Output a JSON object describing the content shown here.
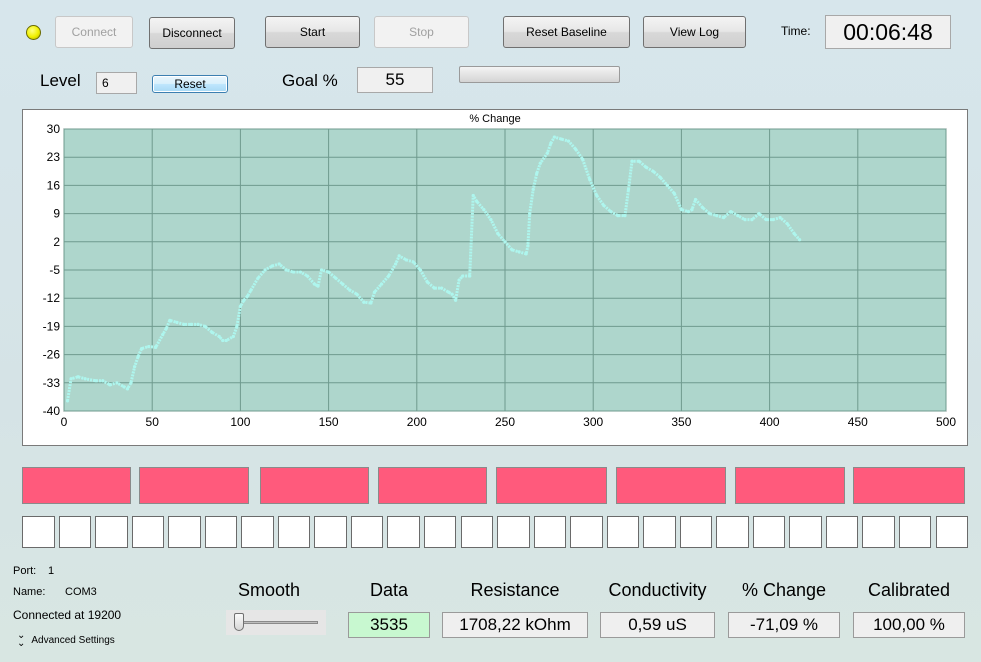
{
  "toolbar": {
    "connect_label": "Connect",
    "disconnect_label": "Disconnect",
    "start_label": "Start",
    "stop_label": "Stop",
    "reset_baseline_label": "Reset Baseline",
    "view_log_label": "View Log",
    "time_label": "Time:",
    "time_value": "00:06:48",
    "status_led_color": "#f0f000"
  },
  "level": {
    "label": "Level",
    "value": "6",
    "reset_label": "Reset"
  },
  "goal": {
    "label": "Goal %",
    "value": "55"
  },
  "chart_data": {
    "type": "line",
    "title": "% Change",
    "xlim": [
      0,
      500
    ],
    "ylim": [
      -40,
      30
    ],
    "x_ticks": [
      0,
      50,
      100,
      150,
      200,
      250,
      300,
      350,
      400,
      450,
      500
    ],
    "y_ticks": [
      30,
      23,
      16,
      9,
      2,
      -5,
      -12,
      -19,
      -26,
      -33,
      -40
    ],
    "grid": true,
    "colors": {
      "plot_bg": "#aed6cc",
      "line": "#aef6ee",
      "grid": "#6f9a8e"
    },
    "series": [
      {
        "x": [
          2,
          4,
          8,
          12,
          18,
          22,
          26,
          30,
          34,
          36,
          38,
          40,
          42,
          44,
          48,
          52,
          56,
          58,
          60,
          64,
          68,
          72,
          76,
          80,
          84,
          88,
          90,
          92,
          96,
          98,
          100,
          102,
          104,
          106,
          110,
          114,
          118,
          122,
          126,
          130,
          134,
          138,
          142,
          144,
          146,
          150,
          154,
          158,
          162,
          166,
          170,
          174,
          176,
          180,
          184,
          188,
          190,
          194,
          198,
          202,
          206,
          210,
          214,
          218,
          220,
          222,
          224,
          226,
          230,
          232,
          234,
          238,
          242,
          246,
          250,
          254,
          258,
          262,
          263,
          264,
          266,
          268,
          270,
          274,
          276,
          278,
          282,
          286,
          290,
          294,
          298,
          302,
          306,
          310,
          314,
          318,
          320,
          322,
          326,
          330,
          334,
          338,
          342,
          346,
          350,
          354,
          356,
          358,
          362,
          366,
          370,
          374,
          378,
          382,
          386,
          390,
          394,
          398,
          402,
          406,
          410,
          414,
          417
        ],
        "values": [
          -37.5,
          -32,
          -31.5,
          -32,
          -32.5,
          -32.5,
          -33.5,
          -33,
          -34,
          -34.5,
          -33,
          -29,
          -26.5,
          -24.5,
          -24,
          -24.2,
          -21,
          -19.5,
          -17.5,
          -18,
          -18.5,
          -18.5,
          -18.5,
          -19,
          -20.5,
          -21.5,
          -22.5,
          -22.5,
          -21.5,
          -19,
          -14,
          -12.5,
          -11.5,
          -10,
          -7,
          -5,
          -4,
          -3.5,
          -5,
          -5.5,
          -5.5,
          -6.5,
          -8.5,
          -9,
          -5,
          -5.5,
          -7,
          -8.5,
          -10,
          -11,
          -13,
          -13.2,
          -10.5,
          -8.5,
          -6.5,
          -3.5,
          -1.5,
          -2.5,
          -3,
          -5,
          -8,
          -9.5,
          -9.5,
          -10.5,
          -11,
          -12.5,
          -7.5,
          -6.5,
          -6.5,
          13.5,
          12,
          10,
          7.5,
          4,
          2,
          0,
          -0.5,
          -1,
          1,
          9,
          15,
          19,
          21.5,
          24,
          26.5,
          28,
          27.5,
          27,
          25,
          22.5,
          17.5,
          13.5,
          11,
          9.5,
          8.5,
          8.5,
          15,
          22,
          22,
          20.5,
          19.5,
          18,
          16,
          14,
          10,
          9.5,
          10,
          12.5,
          10.5,
          9,
          8.5,
          8,
          9.5,
          8.5,
          7.5,
          7.5,
          9,
          7.5,
          7.5,
          8,
          6.5,
          4,
          2.5
        ]
      }
    ]
  },
  "indicators": {
    "red_bar_color": "#ff5a7c",
    "red_bar_count": 8,
    "cell_count": 26
  },
  "port": {
    "port_label": "Port:",
    "port_value": "1",
    "name_label": "Name:",
    "name_value": "COM3",
    "connected_text": "Connected at 19200",
    "advanced_label": "Advanced Settings"
  },
  "readouts": {
    "smooth_label": "Smooth",
    "data_label": "Data",
    "data_value": "3535",
    "data_bg_color": "#c8f8d0",
    "resistance_label": "Resistance",
    "resistance_value": "1708,22 kOhm",
    "conductivity_label": "Conductivity",
    "conductivity_value": "0,59 uS",
    "change_label": "% Change",
    "change_value": "-71,09 %",
    "calibrated_label": "Calibrated",
    "calibrated_value": "100,00 %"
  }
}
